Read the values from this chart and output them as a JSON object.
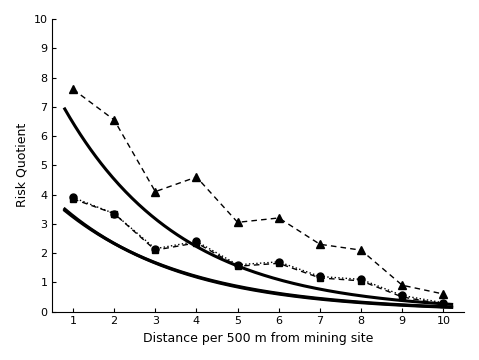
{
  "x": [
    1,
    2,
    3,
    4,
    5,
    6,
    7,
    8,
    9,
    10
  ],
  "RQTSP_obs": [
    3.85,
    3.35,
    2.1,
    2.35,
    1.55,
    1.65,
    1.15,
    1.05,
    0.5,
    0.25
  ],
  "RQPM10_obs": [
    3.9,
    3.35,
    2.15,
    2.4,
    1.6,
    1.7,
    1.2,
    1.1,
    0.55,
    0.3
  ],
  "RQCombined_obs": [
    7.6,
    6.55,
    4.1,
    4.6,
    3.05,
    3.2,
    2.3,
    2.1,
    0.9,
    0.6
  ],
  "RQTSP_a": 4.6,
  "RQTSP_b": -0.34,
  "RQPM10_a": 4.5,
  "RQPM10_b": -0.33,
  "RQCombined_a": 9.2,
  "RQCombined_b": -0.355,
  "ylim": [
    0,
    10
  ],
  "xlim": [
    0.5,
    10.5
  ],
  "yticks": [
    0,
    1,
    2,
    3,
    4,
    5,
    6,
    7,
    8,
    9,
    10
  ],
  "xticks": [
    1,
    2,
    3,
    4,
    5,
    6,
    7,
    8,
    9,
    10
  ],
  "xlabel": "Distance per 500 m from mining site",
  "ylabel": "Risk Quotient",
  "color": "#000000",
  "trend_linewidth": 2.2,
  "obs_linewidth": 1.0
}
